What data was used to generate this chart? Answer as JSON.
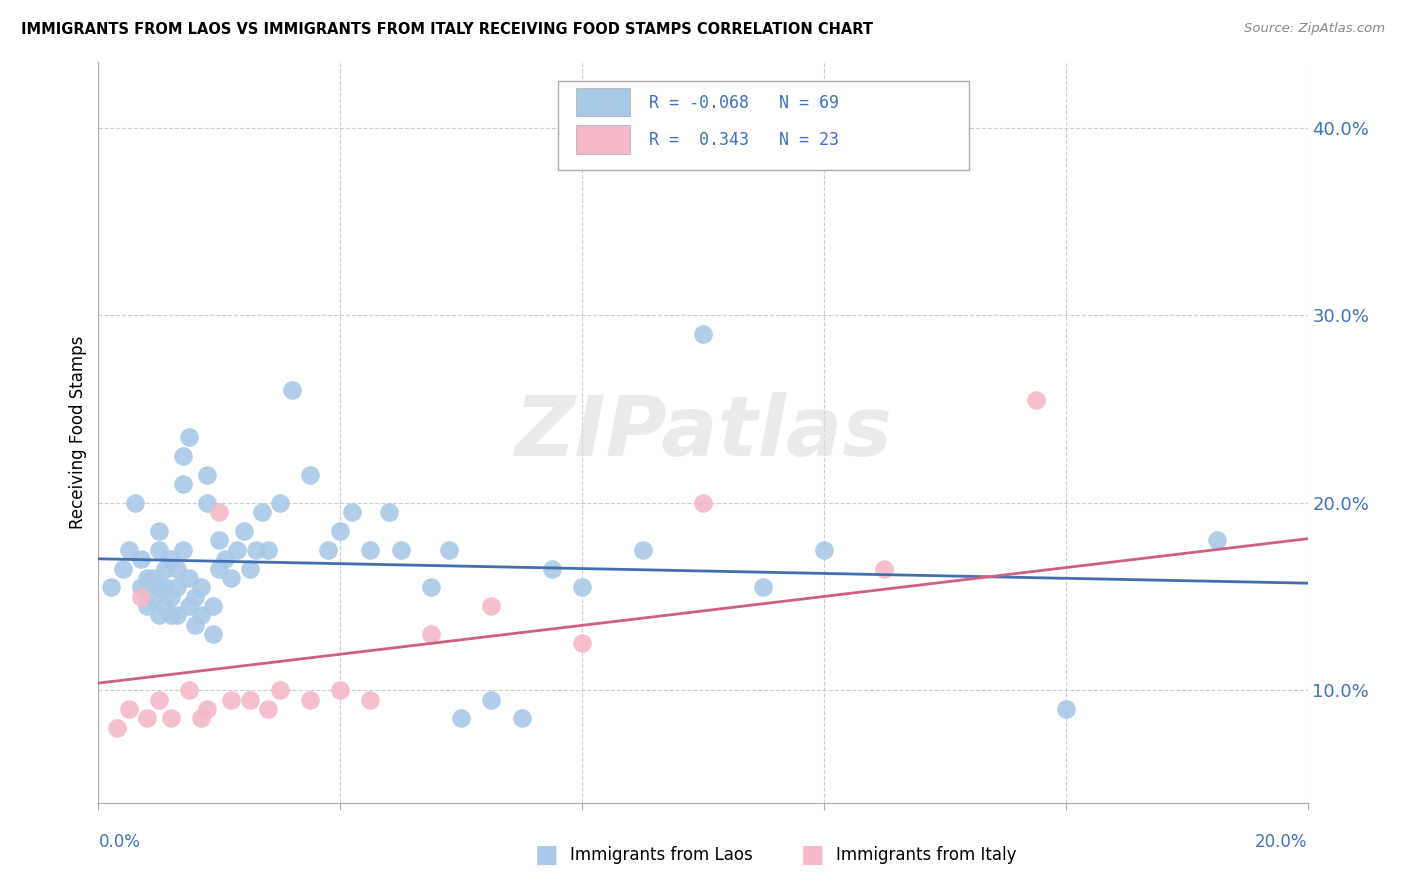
{
  "title": "IMMIGRANTS FROM LAOS VS IMMIGRANTS FROM ITALY RECEIVING FOOD STAMPS CORRELATION CHART",
  "source": "Source: ZipAtlas.com",
  "ylabel": "Receiving Food Stamps",
  "ytick_labels": [
    "10.0%",
    "20.0%",
    "30.0%",
    "40.0%"
  ],
  "ytick_values": [
    0.1,
    0.2,
    0.3,
    0.4
  ],
  "xtick_positions": [
    0.0,
    0.04,
    0.08,
    0.12,
    0.16,
    0.2
  ],
  "xlim": [
    0.0,
    0.2
  ],
  "ylim": [
    0.04,
    0.435
  ],
  "watermark": "ZIPatlas",
  "blue_color": "#A8C8E8",
  "pink_color": "#F4B8C8",
  "blue_line_color": "#4070B0",
  "pink_line_color": "#D06080",
  "legend_text_color": "#4070C0",
  "ytick_color": "#4070C0",
  "grid_color": "#CCCCCC",
  "blue_x": [
    0.002,
    0.004,
    0.005,
    0.006,
    0.007,
    0.007,
    0.008,
    0.008,
    0.009,
    0.009,
    0.01,
    0.01,
    0.01,
    0.01,
    0.011,
    0.011,
    0.011,
    0.012,
    0.012,
    0.012,
    0.013,
    0.013,
    0.013,
    0.014,
    0.014,
    0.014,
    0.015,
    0.015,
    0.015,
    0.016,
    0.016,
    0.017,
    0.017,
    0.018,
    0.018,
    0.019,
    0.019,
    0.02,
    0.02,
    0.021,
    0.022,
    0.023,
    0.024,
    0.025,
    0.026,
    0.027,
    0.028,
    0.03,
    0.032,
    0.035,
    0.038,
    0.04,
    0.042,
    0.045,
    0.048,
    0.05,
    0.055,
    0.058,
    0.06,
    0.065,
    0.07,
    0.075,
    0.08,
    0.09,
    0.1,
    0.11,
    0.12,
    0.16,
    0.185
  ],
  "blue_y": [
    0.155,
    0.165,
    0.175,
    0.2,
    0.155,
    0.17,
    0.145,
    0.16,
    0.15,
    0.16,
    0.175,
    0.185,
    0.14,
    0.155,
    0.165,
    0.145,
    0.155,
    0.17,
    0.14,
    0.15,
    0.165,
    0.14,
    0.155,
    0.175,
    0.21,
    0.225,
    0.235,
    0.145,
    0.16,
    0.135,
    0.15,
    0.14,
    0.155,
    0.2,
    0.215,
    0.13,
    0.145,
    0.165,
    0.18,
    0.17,
    0.16,
    0.175,
    0.185,
    0.165,
    0.175,
    0.195,
    0.175,
    0.2,
    0.26,
    0.215,
    0.175,
    0.185,
    0.195,
    0.175,
    0.195,
    0.175,
    0.155,
    0.175,
    0.085,
    0.095,
    0.085,
    0.165,
    0.155,
    0.175,
    0.29,
    0.155,
    0.175,
    0.09,
    0.18
  ],
  "pink_x": [
    0.003,
    0.005,
    0.007,
    0.008,
    0.01,
    0.012,
    0.015,
    0.017,
    0.018,
    0.02,
    0.022,
    0.025,
    0.028,
    0.03,
    0.035,
    0.04,
    0.045,
    0.055,
    0.065,
    0.08,
    0.1,
    0.13,
    0.155
  ],
  "pink_y": [
    0.08,
    0.09,
    0.15,
    0.085,
    0.095,
    0.085,
    0.1,
    0.085,
    0.09,
    0.195,
    0.095,
    0.095,
    0.09,
    0.1,
    0.095,
    0.1,
    0.095,
    0.13,
    0.145,
    0.125,
    0.2,
    0.165,
    0.255
  ]
}
